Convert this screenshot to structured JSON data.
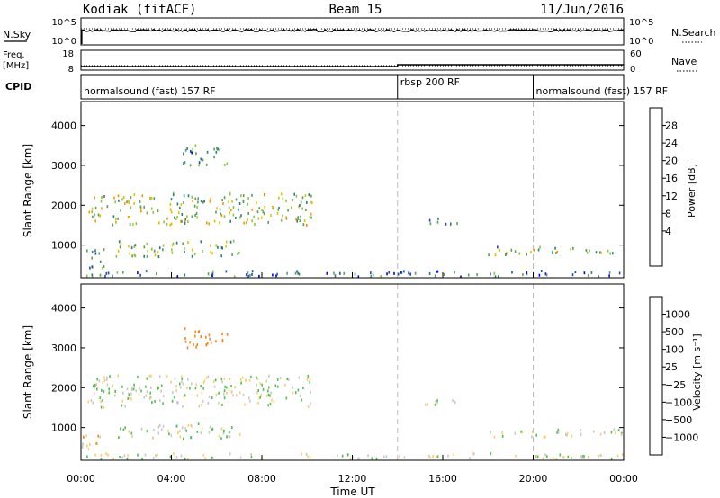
{
  "header": {
    "station": "Kodiak (fitACF)",
    "beam": "Beam 15",
    "date": "11/Jun/2016"
  },
  "top_panels": {
    "nsky_label": "N.Sky",
    "nsearch_label": "N.Search",
    "noise_ticks_left": [
      "10^5",
      "10^0"
    ],
    "noise_ticks_right": [
      "10^5",
      "10^0"
    ],
    "freq_label_1": "Freq.",
    "freq_label_2": "[MHz]",
    "freq_ticks": [
      "18",
      "8"
    ],
    "nave_label": "Nave",
    "nave_ticks": [
      "60",
      "0"
    ],
    "cpid_label": "CPID",
    "cpid_segments": [
      {
        "label": "normalsound (fast) 157 RF",
        "start_h": 0,
        "end_h": 14
      },
      {
        "label": "rbsp 200 RF",
        "start_h": 14,
        "end_h": 20
      },
      {
        "label": "normalsound (fast) 157 RF",
        "start_h": 20,
        "end_h": 24
      }
    ]
  },
  "power_panel": {
    "ylabel": "Slant Range [km]",
    "yticks": [
      "4000",
      "3000",
      "2000",
      "1000"
    ],
    "colorbar_label": "Power [dB]",
    "colorbar_ticks": [
      "28",
      "24",
      "20",
      "16",
      "12",
      "8",
      "4"
    ],
    "colors": [
      "#0000ff",
      "#1f4fa8",
      "#2a7e7e",
      "#5aa05a",
      "#8cc63a",
      "#e0c000",
      "#f59a00",
      "#f05a00",
      "#ee0000"
    ]
  },
  "velocity_panel": {
    "ylabel": "Slant Range [km]",
    "yticks": [
      "4000",
      "3000",
      "2000",
      "1000"
    ],
    "colorbar_label": "Velocity [m s⁻¹]",
    "colorbar_ticks": [
      "1000",
      "500",
      "100",
      "25",
      "−25",
      "−100",
      "−500",
      "−1000"
    ],
    "colors": [
      "#2040b0",
      "#1f6fbf",
      "#2f8f6f",
      "#50c050",
      "#c8c8c8",
      "#f4d070",
      "#f08a1a",
      "#f04a10",
      "#ee0000"
    ]
  },
  "xaxis": {
    "ticks": [
      "00:00",
      "04:00",
      "08:00",
      "12:00",
      "16:00",
      "20:00",
      "00:00"
    ],
    "label": "Time UT"
  },
  "chart_data": {
    "type": "heatmap",
    "title": "Kodiak (fitACF)",
    "subtitle": "Beam 15",
    "date": "11/Jun/2016",
    "xlabel": "Time UT",
    "ylabel": "Slant Range [km]",
    "xlim_hours": [
      0,
      24
    ],
    "ylim_km": [
      180,
      4600
    ],
    "panels": [
      "Power [dB]",
      "Velocity [m s⁻¹]"
    ],
    "power_range_db": [
      0,
      30
    ],
    "velocity_bins_ms": [
      -1000,
      -500,
      -100,
      -25,
      25,
      100,
      500,
      1000
    ],
    "cpid_boundaries_h": [
      14,
      20
    ],
    "echo_regions": [
      {
        "t0": 0.0,
        "t1": 1.0,
        "r0": 400,
        "r1": 900,
        "power_db": 10,
        "velocity": -50
      },
      {
        "t0": 0.3,
        "t1": 10.2,
        "r0": 1500,
        "r1": 2300,
        "power_db": 14,
        "velocity": 0
      },
      {
        "t0": 1.5,
        "t1": 7.0,
        "r0": 700,
        "r1": 1100,
        "power_db": 12,
        "velocity": 0
      },
      {
        "t0": 4.5,
        "t1": 6.5,
        "r0": 3000,
        "r1": 3500,
        "power_db": 8,
        "velocity": -200
      },
      {
        "t0": 15.2,
        "t1": 16.8,
        "r0": 1500,
        "r1": 1700,
        "power_db": 8,
        "velocity": 0
      },
      {
        "t0": 18.0,
        "t1": 24.0,
        "r0": 750,
        "r1": 950,
        "power_db": 12,
        "velocity": 0
      },
      {
        "t0": 0.0,
        "t1": 24.0,
        "r0": 200,
        "r1": 350,
        "power_db": 6,
        "velocity": 0
      }
    ]
  }
}
